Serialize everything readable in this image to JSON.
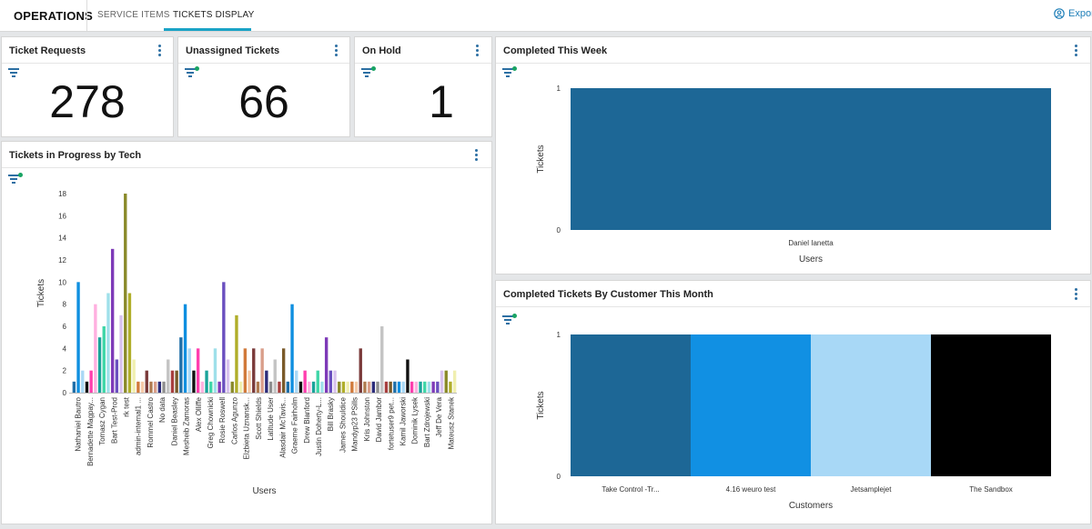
{
  "header": {
    "app_title": "OPERATIONS",
    "tabs": [
      {
        "label": "SERVICE ITEMS"
      },
      {
        "label": "TICKETS DISPLAY"
      }
    ],
    "export_label": "Export"
  },
  "tiles": {
    "requests": {
      "title": "Ticket Requests",
      "value": "278"
    },
    "unassigned": {
      "title": "Unassigned Tickets",
      "value": "66"
    },
    "onhold": {
      "title": "On Hold",
      "value": "1"
    }
  },
  "widgets": {
    "progress": {
      "title": "Tickets in Progress by Tech"
    },
    "week": {
      "title": "Completed This Week"
    },
    "month": {
      "title": "Completed Tickets By Customer This Month"
    }
  },
  "chart_data": [
    {
      "id": "progress",
      "type": "bar",
      "xlabel": "Users",
      "ylabel": "Tickets",
      "ylim": [
        0,
        18
      ],
      "yticks": [
        0,
        2,
        4,
        6,
        8,
        10,
        12,
        14,
        16,
        18
      ],
      "tick_labels": [
        "Nathaniel Bautro",
        "Bernadette Magpay...",
        "Tomasz Cygan",
        "Bart Test-Prod",
        "rk test",
        "admin-internal1 ...",
        "Rommel Castro",
        "No data",
        "Daniel Beasley",
        "Mesheib Zamoras",
        "Alex Olliffe",
        "Greg Chownicki",
        "Rosie Roswell",
        "Carlos Agunzo",
        "Elzbieta Uznansk...",
        "Scott Shields",
        "Latitude User",
        "Alasdair McTavis...",
        "Graeme Fairholm",
        "Drew Blanford",
        "Justin Doherty-L...",
        "Bill Brasky",
        "James Shouldice",
        "Mandyp23 PSills",
        "Kris Johnston",
        "David Jambor",
        "fortetuser9 pet...",
        "Kamil Jaworski",
        "Dominik Lysek",
        "Bart Zdrojewski",
        "Jeff De Vera",
        "Mateusz Stanek"
      ],
      "values": [
        1,
        10,
        2,
        1,
        2,
        8,
        5,
        6,
        9,
        13,
        3,
        7,
        18,
        9,
        3,
        1,
        1,
        2,
        1,
        1,
        1,
        1,
        3,
        2,
        2,
        5,
        8,
        4,
        2,
        4,
        1,
        2,
        1,
        4,
        1,
        10,
        3,
        1,
        7,
        1,
        4,
        2,
        4,
        1,
        4,
        2,
        1,
        3,
        1,
        4,
        1,
        8,
        2,
        1,
        2,
        1,
        1,
        2,
        1,
        5,
        2,
        2,
        1,
        1,
        1,
        1,
        1,
        4,
        1,
        1,
        1,
        1,
        6,
        1,
        1,
        1,
        1,
        1,
        3,
        1,
        1,
        1,
        1,
        1,
        1,
        1,
        2,
        2,
        1,
        2
      ],
      "colors": [
        "#1f6fa8",
        "#0f8fe0",
        "#a9d8f5",
        "#111111",
        "#ff3fae",
        "#ffb0e0",
        "#1aa39a",
        "#3fd6a8",
        "#9fe0ea",
        "#7e3ab8",
        "#6a4fbf",
        "#d8c2ee",
        "#8a8a2a",
        "#b0ae2a",
        "#f0efb0",
        "#d17a3b",
        "#f5c9a8",
        "#7a3a3a",
        "#b07a4f",
        "#d99e8a",
        "#2c2c7a",
        "#8f8f8f",
        "#c4c4c4",
        "#a83f3f",
        "#7a5a2a"
      ]
    },
    {
      "id": "week",
      "type": "bar",
      "xlabel": "Users",
      "ylabel": "Tickets",
      "ylim": [
        0,
        1
      ],
      "yticks": [
        0,
        1
      ],
      "categories": [
        "Daniel Ianetta"
      ],
      "values": [
        1
      ],
      "colors": [
        "#1d6796"
      ]
    },
    {
      "id": "month",
      "type": "bar",
      "xlabel": "Customers",
      "ylabel": "Tickets",
      "ylim": [
        0,
        1
      ],
      "yticks": [
        0,
        1
      ],
      "categories": [
        "Take Control -Tr...",
        "4.16 weuro test",
        "Jetsamplejet",
        "The Sandbox"
      ],
      "values": [
        1,
        1,
        1,
        1
      ],
      "colors": [
        "#1d6796",
        "#1190e3",
        "#a8d8f6",
        "#000000"
      ]
    }
  ]
}
